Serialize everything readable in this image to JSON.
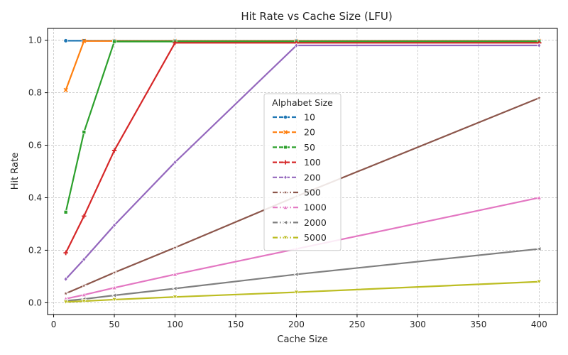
{
  "chart_data": {
    "type": "line",
    "title": "Hit Rate vs Cache Size (LFU)",
    "xlabel": "Cache Size",
    "ylabel": "Hit Rate",
    "xlim": [
      -5,
      415
    ],
    "ylim": [
      -0.045,
      1.045
    ],
    "xticks": [
      "0",
      "50",
      "100",
      "150",
      "200",
      "250",
      "300",
      "350",
      "400"
    ],
    "xtick_values": [
      0,
      50,
      100,
      150,
      200,
      250,
      300,
      350,
      400
    ],
    "yticks": [
      "0.0",
      "0.2",
      "0.4",
      "0.6",
      "0.8",
      "1.0"
    ],
    "ytick_values": [
      0,
      0.2,
      0.4,
      0.6,
      0.8,
      1.0
    ],
    "grid": true,
    "legend": {
      "title": "Alphabet Size",
      "placement": "center"
    },
    "x": [
      10,
      25,
      50,
      100,
      200,
      400
    ],
    "series": [
      {
        "name": "10",
        "color": "#1f77b4",
        "marker": "circle",
        "dash": "dashed",
        "values": [
          0.998,
          0.998,
          0.998,
          0.998,
          0.998,
          0.998
        ]
      },
      {
        "name": "20",
        "color": "#ff7f0e",
        "marker": "x",
        "dash": "dashed",
        "values": [
          0.81,
          0.997,
          0.997,
          0.997,
          0.997,
          0.997
        ]
      },
      {
        "name": "50",
        "color": "#2ca02c",
        "marker": "square",
        "dash": "dashed",
        "values": [
          0.345,
          0.65,
          0.995,
          0.995,
          0.995,
          0.995
        ]
      },
      {
        "name": "100",
        "color": "#d62728",
        "marker": "plus",
        "dash": "dashed",
        "values": [
          0.19,
          0.33,
          0.58,
          0.99,
          0.99,
          0.99
        ]
      },
      {
        "name": "200",
        "color": "#9467bd",
        "marker": "diamond",
        "dash": "dashed",
        "values": [
          0.09,
          0.165,
          0.295,
          0.535,
          0.98,
          0.98
        ]
      },
      {
        "name": "500",
        "color": "#8c564b",
        "marker": "star",
        "dash": "dashdot",
        "values": [
          0.035,
          0.065,
          0.115,
          0.21,
          0.405,
          0.78
        ]
      },
      {
        "name": "1000",
        "color": "#e377c2",
        "marker": "triangle-up",
        "dash": "dashdot",
        "values": [
          0.015,
          0.03,
          0.057,
          0.108,
          0.205,
          0.4
        ]
      },
      {
        "name": "2000",
        "color": "#7f7f7f",
        "marker": "triangle-left",
        "dash": "dashdot",
        "values": [
          0.007,
          0.014,
          0.028,
          0.054,
          0.108,
          0.205
        ]
      },
      {
        "name": "5000",
        "color": "#bcbd22",
        "marker": "triangle-down",
        "dash": "dashdot",
        "values": [
          0.003,
          0.006,
          0.012,
          0.022,
          0.04,
          0.08
        ]
      }
    ]
  }
}
